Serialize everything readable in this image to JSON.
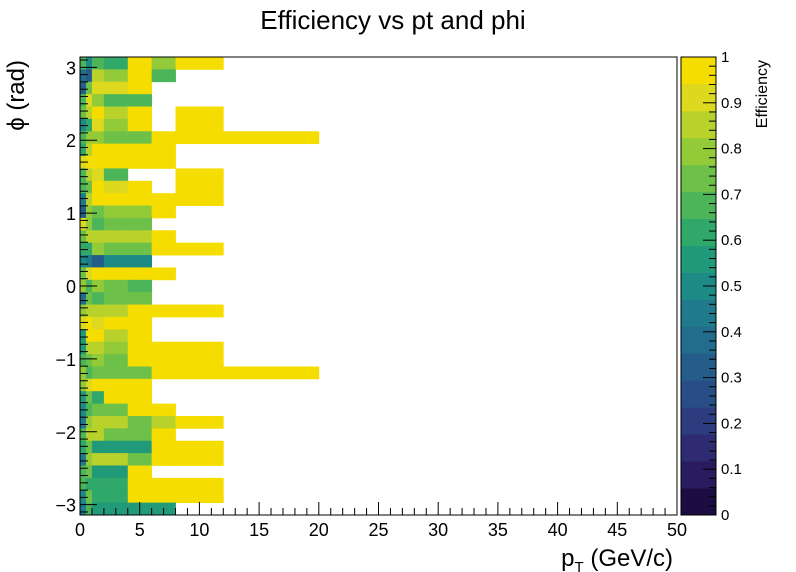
{
  "chart_data": {
    "type": "heatmap",
    "title": "Efficiency vs pt and phi",
    "xlabel_main": "p",
    "xlabel_sub": "T",
    "xlabel_unit": " (GeV/c)",
    "ylabel": "ϕ (rad)",
    "zlabel": "Efficiency",
    "xlim": [
      0,
      50
    ],
    "ylim": [
      -3.14159,
      3.14159
    ],
    "zlim": [
      0,
      1
    ],
    "x_ticks": [
      0,
      5,
      10,
      15,
      20,
      25,
      30,
      35,
      40,
      45,
      50
    ],
    "x_tick_labels": [
      "0",
      "5",
      "10",
      "15",
      "20",
      "25",
      "30",
      "35",
      "40",
      "45",
      "50"
    ],
    "y_ticks": [
      -3,
      -2,
      -1,
      0,
      1,
      2,
      3
    ],
    "y_tick_labels": [
      "−3",
      "−2",
      "−1",
      "0",
      "1",
      "2",
      "3"
    ],
    "z_ticks": [
      0,
      0.1,
      0.2,
      0.3,
      0.4,
      0.5,
      0.6,
      0.7,
      0.8,
      0.9,
      1
    ],
    "z_tick_labels": [
      "0",
      "0.1",
      "0.2",
      "0.3",
      "0.4",
      "0.5",
      "0.6",
      "0.7",
      "0.8",
      "0.9",
      "1"
    ],
    "y_bin_count": 37,
    "x_bin_edges": [
      0,
      0.5,
      1,
      2,
      4,
      6,
      8,
      12,
      20
    ],
    "palette": [
      "#1b0c41",
      "#2a1b5e",
      "#2f2b73",
      "#2c3c7f",
      "#294d87",
      "#255d8a",
      "#226c8c",
      "#1f7b8b",
      "#1e8a85",
      "#219a79",
      "#2fa86a",
      "#4cb55a",
      "#6ec148",
      "#93ca38",
      "#b9d22b",
      "#dcd91f",
      "#f5dd00"
    ],
    "rows": [
      [
        0.7,
        0.5,
        0.65,
        0.6,
        1.0,
        0.8,
        1.0,
        null
      ],
      [
        0.4,
        0.3,
        0.85,
        0.8,
        1.0,
        0.7,
        null,
        null
      ],
      [
        0.3,
        0.75,
        0.9,
        0.9,
        1.0,
        null,
        null,
        null
      ],
      [
        0.65,
        0.9,
        0.8,
        0.7,
        0.7,
        null,
        null,
        null
      ],
      [
        0.75,
        0.85,
        1.0,
        0.85,
        1.0,
        null,
        1.0,
        null
      ],
      [
        0.5,
        0.6,
        0.9,
        0.8,
        1.0,
        null,
        1.0,
        null
      ],
      [
        0.65,
        0.8,
        0.8,
        0.75,
        0.75,
        1.0,
        1.0,
        1.0
      ],
      [
        0.6,
        0.85,
        1.0,
        1.0,
        1.0,
        1.0,
        null,
        null
      ],
      [
        0.9,
        1.0,
        1.0,
        1.0,
        1.0,
        1.0,
        null,
        null
      ],
      [
        0.7,
        0.85,
        0.9,
        0.7,
        null,
        null,
        1.0,
        null
      ],
      [
        0.65,
        0.75,
        1.0,
        0.9,
        1.0,
        null,
        1.0,
        null
      ],
      [
        0.45,
        0.85,
        1.0,
        1.0,
        1.0,
        1.0,
        1.0,
        null
      ],
      [
        0.3,
        0.8,
        0.75,
        0.8,
        0.8,
        1.0,
        null,
        null
      ],
      [
        0.9,
        0.8,
        0.65,
        0.75,
        0.75,
        null,
        null,
        null
      ],
      [
        0.75,
        0.85,
        0.85,
        0.85,
        0.85,
        1.0,
        null,
        null
      ],
      [
        0.6,
        0.6,
        0.8,
        0.75,
        0.75,
        1.0,
        1.0,
        null
      ],
      [
        0.5,
        0.45,
        0.35,
        0.5,
        0.5,
        null,
        null,
        null
      ],
      [
        0.75,
        0.9,
        1.0,
        1.0,
        1.0,
        1.0,
        null,
        null
      ],
      [
        0.8,
        0.7,
        0.8,
        0.75,
        0.65,
        null,
        null,
        null
      ],
      [
        0.4,
        0.75,
        0.7,
        0.75,
        0.75,
        null,
        null,
        null
      ],
      [
        0.8,
        0.85,
        0.85,
        0.85,
        1.0,
        1.0,
        1.0,
        null
      ],
      [
        0.9,
        1.0,
        0.9,
        1.0,
        1.0,
        null,
        null,
        null
      ],
      [
        0.55,
        0.95,
        1.0,
        0.85,
        1.0,
        null,
        null,
        null
      ],
      [
        0.55,
        0.85,
        0.85,
        0.8,
        1.0,
        1.0,
        1.0,
        null
      ],
      [
        0.65,
        0.75,
        0.8,
        0.75,
        1.0,
        1.0,
        1.0,
        null
      ],
      [
        0.8,
        0.7,
        0.75,
        0.75,
        0.75,
        1.0,
        1.0,
        1.0
      ],
      [
        0.8,
        0.9,
        1.0,
        1.0,
        1.0,
        null,
        null,
        null
      ],
      [
        0.55,
        0.75,
        0.6,
        1.0,
        1.0,
        null,
        null,
        null
      ],
      [
        0.5,
        0.65,
        0.75,
        0.75,
        1.0,
        1.0,
        null,
        null
      ],
      [
        0.45,
        0.8,
        0.85,
        0.85,
        0.75,
        0.85,
        1.0,
        null
      ],
      [
        0.7,
        0.85,
        0.85,
        0.75,
        0.75,
        1.0,
        null,
        null
      ],
      [
        0.6,
        0.75,
        0.55,
        0.55,
        0.55,
        1.0,
        1.0,
        null
      ],
      [
        0.45,
        0.8,
        0.85,
        0.85,
        0.75,
        1.0,
        1.0,
        null
      ],
      [
        0.7,
        0.75,
        0.55,
        0.55,
        1.0,
        null,
        null,
        null
      ],
      [
        0.65,
        0.6,
        0.6,
        0.6,
        1.0,
        1.0,
        1.0,
        null
      ],
      [
        0.5,
        0.75,
        0.6,
        0.6,
        1.0,
        1.0,
        1.0,
        null
      ],
      [
        0.45,
        0.7,
        0.55,
        0.55,
        0.55,
        0.55,
        null,
        null
      ]
    ]
  }
}
